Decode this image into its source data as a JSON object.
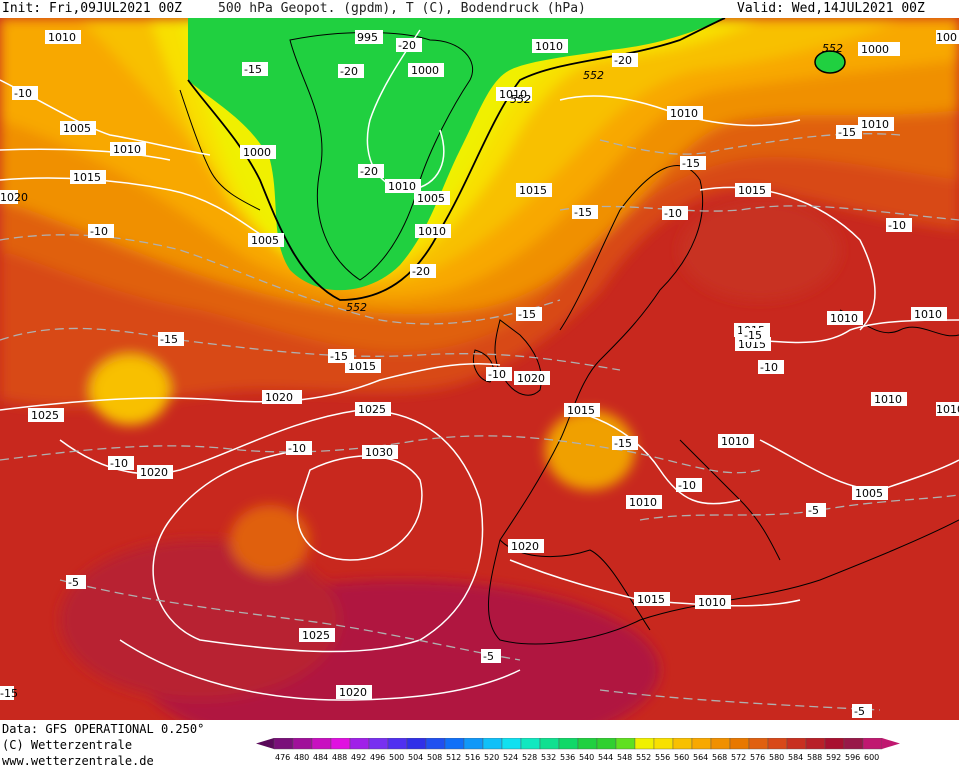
{
  "header": {
    "init": "Init: Fri,09JUL2021 00Z",
    "product": "500 hPa Geopot. (gpdm), T (C), Bodendruck (hPa)",
    "valid": "Valid: Wed,14JUL2021 00Z"
  },
  "footer": {
    "data_line": "Data: GFS OPERATIONAL 0.250°",
    "copyright": "(C) Wetterzentrale",
    "url": "www.wetterzentrale.de"
  },
  "legend": {
    "values": [
      "476",
      "480",
      "484",
      "488",
      "492",
      "496",
      "500",
      "504",
      "508",
      "512",
      "516",
      "520",
      "524",
      "528",
      "532",
      "536",
      "540",
      "544",
      "548",
      "552",
      "556",
      "560",
      "564",
      "568",
      "572",
      "576",
      "580",
      "584",
      "588",
      "592",
      "596",
      "600"
    ],
    "colors": [
      "#5a0a5a",
      "#7a107a",
      "#a0109a",
      "#c810c0",
      "#e010e0",
      "#a020e8",
      "#7830f0",
      "#5030f0",
      "#3030e8",
      "#2050f0",
      "#1070f8",
      "#1098f8",
      "#10c0f8",
      "#10e0f0",
      "#10e8c0",
      "#10e090",
      "#10d868",
      "#20d040",
      "#30d030",
      "#60e020",
      "#f0f000",
      "#f8e000",
      "#f8c000",
      "#f8a800",
      "#f09000",
      "#e87800",
      "#e06010",
      "#d84818",
      "#c83020",
      "#b82028",
      "#a81030",
      "#981848",
      "#c01870"
    ]
  },
  "map_labels": {
    "pressure": [
      {
        "text": "1010"
      },
      {
        "text": "995"
      },
      {
        "text": "1000"
      },
      {
        "text": "1010"
      },
      {
        "text": "1005"
      },
      {
        "text": "1010"
      },
      {
        "text": "1000"
      },
      {
        "text": "1015"
      },
      {
        "text": "1010"
      },
      {
        "text": "1005"
      },
      {
        "text": "1005"
      },
      {
        "text": "1010"
      },
      {
        "text": "1015"
      },
      {
        "text": "1015"
      },
      {
        "text": "1010"
      },
      {
        "text": "1000"
      },
      {
        "text": "1010"
      },
      {
        "text": "1015"
      },
      {
        "text": "1020"
      },
      {
        "text": "1025"
      },
      {
        "text": "1025"
      },
      {
        "text": "1030"
      },
      {
        "text": "1020"
      },
      {
        "text": "1020"
      },
      {
        "text": "1015"
      },
      {
        "text": "1015"
      },
      {
        "text": "1010"
      },
      {
        "text": "1010"
      },
      {
        "text": "1010"
      },
      {
        "text": "1010"
      },
      {
        "text": "1010"
      },
      {
        "text": "1005"
      },
      {
        "text": "1020"
      },
      {
        "text": "1015"
      },
      {
        "text": "1010"
      },
      {
        "text": "1025"
      },
      {
        "text": "1020"
      },
      {
        "text": "1015"
      },
      {
        "text": "1010"
      },
      {
        "text": "1020"
      },
      {
        "text": "1010"
      },
      {
        "text": "100"
      }
    ],
    "temperature": [
      {
        "text": "-20"
      },
      {
        "text": "-20"
      },
      {
        "text": "-15"
      },
      {
        "text": "-10"
      },
      {
        "text": "-20"
      },
      {
        "text": "-20"
      },
      {
        "text": "-15"
      },
      {
        "text": "-15"
      },
      {
        "text": "-10"
      },
      {
        "text": "-10"
      },
      {
        "text": "-15"
      },
      {
        "text": "-15"
      },
      {
        "text": "-15"
      },
      {
        "text": "-15"
      },
      {
        "text": "-10"
      },
      {
        "text": "-10"
      },
      {
        "text": "-10"
      },
      {
        "text": "-15"
      },
      {
        "text": "-10"
      },
      {
        "text": "-10"
      },
      {
        "text": "-10"
      },
      {
        "text": "-5"
      },
      {
        "text": "-5"
      },
      {
        "text": "-5"
      },
      {
        "text": "-5"
      },
      {
        "text": "-20"
      },
      {
        "text": "-15"
      },
      {
        "text": "-15"
      }
    ],
    "geopotential": [
      {
        "text": "552"
      },
      {
        "text": "552"
      },
      {
        "text": "552"
      },
      {
        "text": "552"
      }
    ]
  }
}
